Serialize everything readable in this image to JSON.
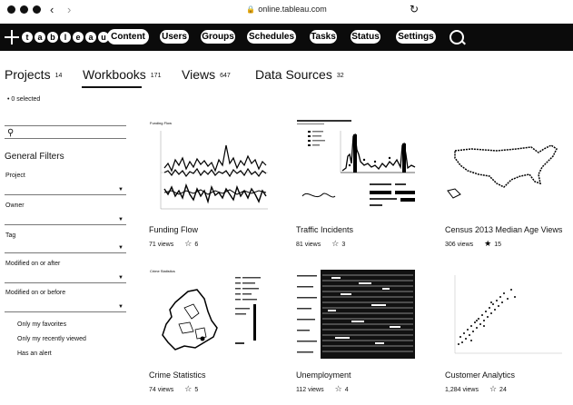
{
  "browser": {
    "url": "online.tableau.com",
    "back_arrow": "‹",
    "forward_arrow": "›",
    "lock_icon": "lock-icon",
    "reload_glyph": "↻"
  },
  "nav": {
    "logo_text": "+ a b | e a u",
    "items": [
      "Content",
      "Users",
      "Groups",
      "Schedules",
      "Tasks",
      "Status",
      "Settings"
    ],
    "active": "Content"
  },
  "tabs": [
    {
      "label": "Projects",
      "count": "14"
    },
    {
      "label": "Workbooks",
      "count": "171"
    },
    {
      "label": "Views",
      "count": "647"
    },
    {
      "label": "Data Sources",
      "count": "32"
    }
  ],
  "selection": {
    "text": "0 selected"
  },
  "sidebar": {
    "title": "General Filters",
    "filters": [
      "Project",
      "Owner",
      "Tag",
      "Modified on or after",
      "Modified on or before"
    ],
    "checkboxes": [
      "Only my favorites",
      "Only my recently viewed",
      "Has an alert"
    ]
  },
  "cards": [
    {
      "title": "Funding Flow",
      "views": "71 views",
      "favorites": "6",
      "chart_title": "Funding Flow"
    },
    {
      "title": "Traffic Incidents",
      "views": "81 views",
      "favorites": "3"
    },
    {
      "title": "Census 2013 Median Age Views",
      "views": "306 views",
      "favorites": "15"
    },
    {
      "title": "Crime Statistics",
      "views": "74 views",
      "favorites": "5",
      "chart_title": "Crime Statistics"
    },
    {
      "title": "Unemployment",
      "views": "112 views",
      "favorites": "4"
    },
    {
      "title": "Customer Analytics",
      "views": "1,284 views",
      "favorites": "24"
    }
  ]
}
